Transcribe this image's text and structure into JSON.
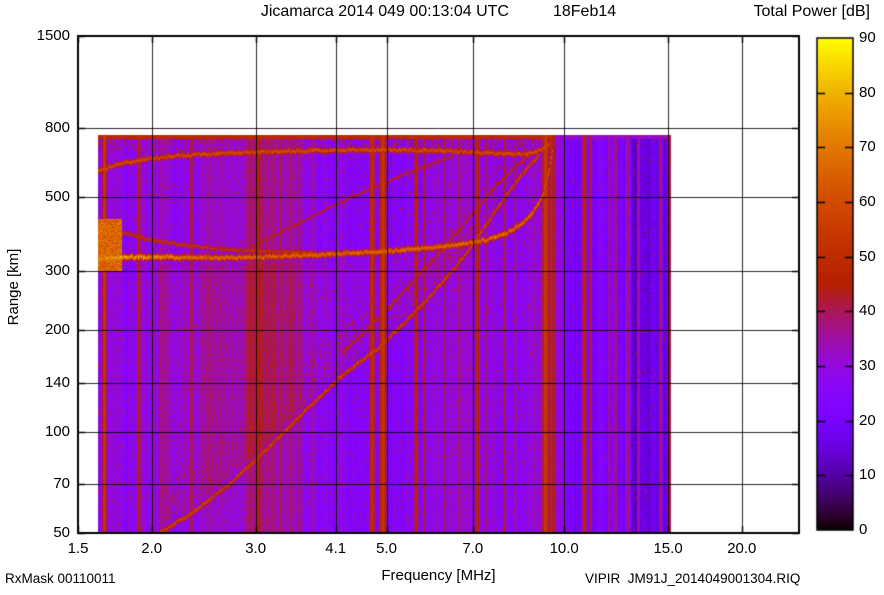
{
  "header": {
    "title_main": "Jicamarca 2014 049 00:13:04 UTC",
    "title_date": "18Feb14",
    "colorbar_title": "Total Power [dB]"
  },
  "footer": {
    "rx_mask": "RxMask 00110011",
    "file_ref": "VIPIR  JM91J_2014049001304.RIQ"
  },
  "chart_data": {
    "type": "heatmap",
    "title": "Jicamarca 2014 049 00:13:04 UTC  18Feb14",
    "xlabel": "Frequency [MHz]",
    "ylabel": "Range [km]",
    "x_scale": "log",
    "y_scale": "log",
    "x_range_mhz": [
      1.5,
      25.0
    ],
    "y_range_km": [
      50,
      1500
    ],
    "x_ticks": [
      1.5,
      2.0,
      3.0,
      4.1,
      5.0,
      7.0,
      10.0,
      15.0,
      20.0
    ],
    "x_tick_labels": [
      "1.5",
      "2.0",
      "3.0",
      "4.1",
      "5.0",
      "7.0",
      "10.0",
      "15.0",
      "20.0"
    ],
    "y_ticks": [
      1500,
      800,
      500,
      300,
      200,
      140,
      100,
      70,
      50
    ],
    "y_tick_labels": [
      "1500",
      "800",
      "500",
      "300",
      "200",
      "140",
      "100",
      "70",
      "50"
    ],
    "x_gridlines": [
      2.0,
      3.0,
      4.1,
      5.0,
      7.0,
      10.0,
      15.0,
      20.0
    ],
    "y_gridlines": [
      800,
      500,
      300,
      200,
      140,
      100,
      70
    ],
    "colorbar": {
      "title": "Total Power [dB]",
      "min": 0,
      "max": 90,
      "tick_step": 10,
      "labels": [
        "90",
        "80",
        "70",
        "60",
        "50",
        "40",
        "30",
        "20",
        "10",
        "0"
      ],
      "colormap": "gnuplot-pm3d-black-purple-red-yellow"
    },
    "data_extent": {
      "f_mhz": [
        1.62,
        15.2
      ],
      "range_km": [
        50,
        760
      ]
    },
    "noise": {
      "base_db": 27,
      "mid_db": 24.5,
      "dark_db": 17,
      "mid_start_mhz": 9.55,
      "dark_start_mhz": 10.05,
      "col_jitter_db": 6,
      "pix_jitter_db": 5.5,
      "speckle_prob": 0.045,
      "speckle_prob_dark": 0.015,
      "speckle_db": [
        36,
        48
      ]
    },
    "rfi_stripes": [
      {
        "f": 1.66,
        "db": 55,
        "w": 2.5
      },
      {
        "f": 1.9,
        "db": 48,
        "w": 2.0
      },
      {
        "f": 2.33,
        "db": 42,
        "w": 3.0
      },
      {
        "f": 2.62,
        "db": 39,
        "w": 1.5
      },
      {
        "f": 3.02,
        "db": 45,
        "w": 4.0
      },
      {
        "f": 3.3,
        "db": 41,
        "w": 2.5
      },
      {
        "f": 3.55,
        "db": 43,
        "w": 1.5
      },
      {
        "f": 3.75,
        "db": 39,
        "w": 1.5
      },
      {
        "f": 4.72,
        "db": 52,
        "w": 3.0
      },
      {
        "f": 4.92,
        "db": 54,
        "w": 4.0
      },
      {
        "f": 5.6,
        "db": 48,
        "w": 2.5
      },
      {
        "f": 5.78,
        "db": 45,
        "w": 1.5
      },
      {
        "f": 6.25,
        "db": 42,
        "w": 1.5
      },
      {
        "f": 6.6,
        "db": 40,
        "w": 1.5
      },
      {
        "f": 7.12,
        "db": 48,
        "w": 2.5
      },
      {
        "f": 7.35,
        "db": 42,
        "w": 1.5
      },
      {
        "f": 7.9,
        "db": 44,
        "w": 1.5
      },
      {
        "f": 8.25,
        "db": 40,
        "w": 1.5
      },
      {
        "f": 9.28,
        "db": 55,
        "w": 4.0
      },
      {
        "f": 9.5,
        "db": 50,
        "w": 2.0
      },
      {
        "f": 9.62,
        "db": 44,
        "w": 1.5
      },
      {
        "f": 10.8,
        "db": 50,
        "w": 2.5
      },
      {
        "f": 11.05,
        "db": 44,
        "w": 1.5
      },
      {
        "f": 11.5,
        "db": 26,
        "w": 4.0
      },
      {
        "f": 11.9,
        "db": 40,
        "w": 1.5
      },
      {
        "f": 12.2,
        "db": 44,
        "w": 1.5
      },
      {
        "f": 12.8,
        "db": 38,
        "w": 2.5
      },
      {
        "f": 13.35,
        "db": 36,
        "w": 1.5
      },
      {
        "f": 14.55,
        "db": 40,
        "w": 1.5
      },
      {
        "f": 15.05,
        "db": 46,
        "w": 2.0
      }
    ],
    "traces": [
      {
        "name": "F-trace",
        "db": 66,
        "sigma": 3.0,
        "bright": [
          2.5,
          75
        ],
        "points": [
          [
            1.62,
            328
          ],
          [
            1.9,
            332
          ],
          [
            2.3,
            331
          ],
          [
            2.8,
            330
          ],
          [
            3.4,
            334
          ],
          [
            4.0,
            338
          ],
          [
            4.6,
            342
          ],
          [
            5.2,
            347
          ],
          [
            5.8,
            352
          ],
          [
            6.4,
            358
          ],
          [
            7.0,
            366
          ],
          [
            7.5,
            376
          ],
          [
            8.0,
            392
          ],
          [
            8.4,
            412
          ],
          [
            8.8,
            444
          ],
          [
            9.1,
            490
          ],
          [
            9.3,
            545
          ],
          [
            9.45,
            620
          ],
          [
            9.55,
            690
          ]
        ]
      },
      {
        "name": "F-trace-xmode-left",
        "db": 53,
        "sigma": 2.2,
        "points": [
          [
            1.62,
            412
          ],
          [
            1.8,
            390
          ],
          [
            2.0,
            372
          ],
          [
            2.3,
            358
          ],
          [
            2.7,
            349
          ],
          [
            3.2,
            344
          ],
          [
            3.8,
            342
          ]
        ]
      },
      {
        "name": "second-hop",
        "db": 60,
        "sigma": 2.8,
        "points": [
          [
            1.62,
            598
          ],
          [
            1.75,
            625
          ],
          [
            1.95,
            648
          ],
          [
            2.2,
            663
          ],
          [
            2.6,
            674
          ],
          [
            3.1,
            681
          ],
          [
            3.7,
            686
          ],
          [
            4.4,
            689
          ],
          [
            5.1,
            690
          ],
          [
            5.8,
            688
          ],
          [
            6.5,
            684
          ],
          [
            7.1,
            679
          ],
          [
            7.7,
            673
          ],
          [
            8.2,
            670
          ],
          [
            8.7,
            673
          ],
          [
            9.0,
            683
          ],
          [
            9.25,
            700
          ],
          [
            9.45,
            722
          ]
        ]
      },
      {
        "name": "lower-diagonal",
        "db": 57,
        "sigma": 2.8,
        "points": [
          [
            2.05,
            50
          ],
          [
            2.35,
            58
          ],
          [
            2.7,
            70
          ],
          [
            3.05,
            85
          ],
          [
            3.4,
            103
          ],
          [
            3.75,
            122
          ],
          [
            4.1,
            142
          ],
          [
            4.45,
            160
          ],
          [
            4.8,
            176
          ],
          [
            5.15,
            198
          ],
          [
            5.5,
            222
          ],
          [
            5.85,
            248
          ],
          [
            6.2,
            278
          ],
          [
            6.55,
            312
          ],
          [
            6.9,
            350
          ],
          [
            7.25,
            398
          ],
          [
            7.6,
            448
          ],
          [
            7.95,
            505
          ],
          [
            8.3,
            558
          ],
          [
            8.6,
            602
          ],
          [
            8.85,
            638
          ],
          [
            9.05,
            665
          ]
        ]
      },
      {
        "name": "upper-diagonal",
        "db": 50,
        "sigma": 2.2,
        "points": [
          [
            4.2,
            172
          ],
          [
            4.6,
            200
          ],
          [
            5.0,
            232
          ],
          [
            5.4,
            268
          ],
          [
            5.8,
            306
          ],
          [
            6.2,
            348
          ],
          [
            6.6,
            396
          ],
          [
            7.0,
            448
          ],
          [
            7.4,
            504
          ],
          [
            7.8,
            558
          ],
          [
            8.2,
            608
          ],
          [
            8.55,
            648
          ],
          [
            8.85,
            680
          ]
        ]
      },
      {
        "name": "faint-diagonal",
        "db": 47,
        "sigma": 1.8,
        "points": [
          [
            2.9,
            350
          ],
          [
            3.2,
            382
          ],
          [
            3.5,
            414
          ],
          [
            3.8,
            446
          ],
          [
            4.1,
            476
          ],
          [
            4.4,
            504
          ],
          [
            4.7,
            530
          ],
          [
            5.0,
            556
          ],
          [
            5.3,
            580
          ],
          [
            5.6,
            602
          ],
          [
            5.9,
            624
          ],
          [
            6.2,
            644
          ],
          [
            6.5,
            662
          ]
        ]
      }
    ],
    "seed": 20140049
  },
  "colors": {
    "background": "#ffffff",
    "grid": "#000000",
    "text": "#000000"
  }
}
